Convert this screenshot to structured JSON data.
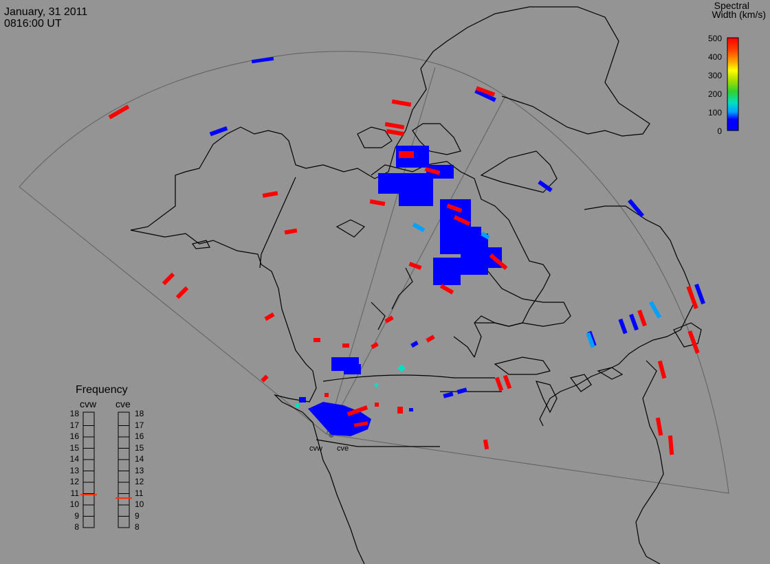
{
  "header": {
    "date": "January, 31 2011",
    "time": "0816:00 UT"
  },
  "colorbar": {
    "title_line1": "Spectral",
    "title_line2": "Width (km/s)",
    "ticks": [
      "500",
      "400",
      "300",
      "200",
      "100",
      "0"
    ],
    "colors": [
      "#0000ff",
      "#00a0ff",
      "#00e0c0",
      "#30d030",
      "#b0e000",
      "#ffff00",
      "#ffa000",
      "#ff4000",
      "#ff0000"
    ]
  },
  "frequency": {
    "title": "Frequency",
    "radars": [
      {
        "name": "cvw",
        "value_mhz": 10.9
      },
      {
        "name": "cve",
        "value_mhz": 10.6
      }
    ],
    "ticks": [
      "18",
      "17",
      "16",
      "15",
      "14",
      "13",
      "12",
      "11",
      "10",
      "9",
      "8"
    ],
    "marker_color": "#ff3000"
  },
  "radar_sites": [
    {
      "label": "cvw"
    },
    {
      "label": "cve"
    }
  ],
  "colors": {
    "background": "#949494",
    "coast": "#000000",
    "fov_outline": "#606060",
    "high_width": "#ff0000",
    "low_width": "#0000ff"
  }
}
